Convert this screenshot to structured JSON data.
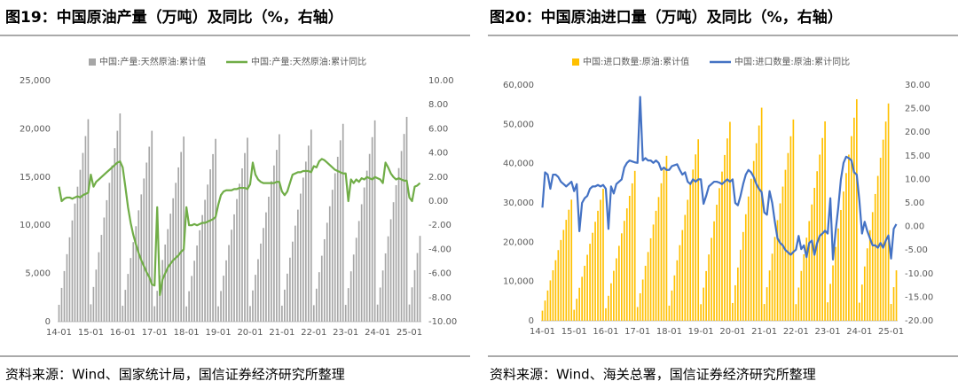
{
  "chart_data": [
    {
      "type": "combo",
      "title": "图19：中国原油产量（万吨）及同比（%，右轴）",
      "source": "资料来源：Wind、国家统计局，国信证券经济研究所整理",
      "categories": [
        "14-01",
        null,
        null,
        null,
        null,
        null,
        null,
        null,
        null,
        null,
        null,
        null,
        "15-01",
        null,
        null,
        null,
        null,
        null,
        null,
        null,
        null,
        null,
        null,
        null,
        "16-01",
        null,
        null,
        null,
        null,
        null,
        null,
        null,
        null,
        null,
        null,
        null,
        "17-01",
        null,
        null,
        null,
        null,
        null,
        null,
        null,
        null,
        null,
        null,
        null,
        "18-01",
        null,
        null,
        null,
        null,
        null,
        null,
        null,
        null,
        null,
        null,
        null,
        "19-01",
        null,
        null,
        null,
        null,
        null,
        null,
        null,
        null,
        null,
        null,
        null,
        "20-01",
        null,
        null,
        null,
        null,
        null,
        null,
        null,
        null,
        null,
        null,
        null,
        "21-01",
        null,
        null,
        null,
        null,
        null,
        null,
        null,
        null,
        null,
        null,
        null,
        "22-01",
        null,
        null,
        null,
        null,
        null,
        null,
        null,
        null,
        null,
        null,
        null,
        "23-01",
        null,
        null,
        null,
        null,
        null,
        null,
        null,
        null,
        null,
        null,
        null,
        "24-01",
        null,
        null,
        null,
        null,
        null,
        null,
        null,
        null,
        null,
        null,
        null,
        "25-01",
        null,
        null,
        null,
        null
      ],
      "ylim": [
        0,
        25000
      ],
      "yticks": [
        0,
        {
          "value": 5000,
          "label": "5,000"
        },
        {
          "value": 10000,
          "label": "10,000"
        },
        {
          "value": 15000,
          "label": "15,000"
        },
        {
          "value": 20000,
          "label": "20,000"
        },
        {
          "value": 25000,
          "label": "25,000"
        }
      ],
      "y2lim": [
        -10,
        10
      ],
      "y2ticks": [
        {
          "value": -10,
          "label": "-10.00"
        },
        {
          "value": -8,
          "label": "-8.00"
        },
        {
          "value": -6,
          "label": "-6.00"
        },
        {
          "value": -4,
          "label": "-4.00"
        },
        {
          "value": -2,
          "label": "-2.00"
        },
        {
          "value": 0,
          "label": "0.00"
        },
        {
          "value": 2,
          "label": "2.00"
        },
        {
          "value": 4,
          "label": "4.00"
        },
        {
          "value": 6,
          "label": "6.00"
        },
        {
          "value": 8,
          "label": "8.00"
        },
        {
          "value": 10,
          "label": "10.00"
        }
      ],
      "series": [
        {
          "name": "中国:产量:天然原油:累计值",
          "kind": "bar",
          "color": "#a6a6a6",
          "values": [
            1750,
            3500,
            5250,
            7000,
            8750,
            10500,
            12250,
            14000,
            15750,
            17500,
            19250,
            21000,
            1800,
            3600,
            5400,
            7200,
            9000,
            10800,
            12600,
            14400,
            16200,
            18000,
            19800,
            21600,
            1650,
            3300,
            4950,
            6600,
            8250,
            9900,
            11550,
            13200,
            14850,
            16500,
            18150,
            19800,
            1600,
            3200,
            4800,
            6400,
            8000,
            9600,
            11200,
            12800,
            14400,
            16000,
            17600,
            19200,
            1580,
            3160,
            4740,
            6320,
            7900,
            9480,
            11060,
            12640,
            14220,
            15800,
            17380,
            18960,
            1590,
            3180,
            4770,
            6360,
            7950,
            9540,
            11130,
            12720,
            14310,
            15900,
            17490,
            19080,
            1620,
            3240,
            4860,
            6480,
            8100,
            9720,
            11340,
            12960,
            14580,
            16200,
            17820,
            19440,
            1660,
            3320,
            4980,
            6640,
            8300,
            9960,
            11620,
            13280,
            14940,
            16600,
            18260,
            19920,
            1710,
            3420,
            5130,
            6840,
            8550,
            10260,
            11970,
            13680,
            15390,
            17100,
            18810,
            20520,
            1740,
            3480,
            5220,
            6960,
            8700,
            10440,
            12180,
            13920,
            15660,
            17400,
            19140,
            20880,
            1770,
            3540,
            5310,
            7080,
            8850,
            10620,
            12390,
            14160,
            15930,
            17700,
            19470,
            21240,
            1780,
            3560,
            5340,
            7120,
            8900
          ]
        },
        {
          "name": "中国:产量:天然原油:累计同比",
          "kind": "line",
          "axis": "y2",
          "color": "#70ad47",
          "values": [
            1.2,
            0.0,
            0.2,
            0.3,
            0.3,
            0.2,
            0.3,
            0.4,
            0.3,
            0.5,
            0.6,
            0.7,
            2.2,
            1.2,
            1.6,
            1.8,
            2.0,
            2.2,
            2.4,
            2.6,
            2.8,
            3.0,
            3.2,
            3.3,
            2.8,
            1.2,
            -0.5,
            -1.8,
            -2.8,
            -3.6,
            -4.3,
            -4.9,
            -5.4,
            -5.9,
            -6.3,
            -6.9,
            -7.0,
            -0.5,
            -7.8,
            -6.5,
            -6.0,
            -5.5,
            -5.2,
            -4.9,
            -4.7,
            -4.5,
            -4.2,
            -4.0,
            -0.5,
            -2.0,
            -2.0,
            -1.9,
            -2.0,
            -1.9,
            -1.8,
            -1.8,
            -1.7,
            -1.6,
            -1.5,
            -1.3,
            -0.3,
            0.5,
            0.8,
            0.9,
            0.9,
            0.9,
            1.0,
            1.0,
            1.1,
            1.1,
            1.1,
            1.0,
            1.4,
            3.2,
            2.2,
            1.8,
            1.6,
            1.5,
            1.5,
            1.5,
            1.5,
            1.5,
            1.6,
            1.6,
            0.8,
            0.5,
            0.8,
            1.5,
            2.2,
            2.3,
            2.4,
            2.4,
            2.5,
            2.5,
            2.5,
            2.4,
            2.9,
            2.8,
            3.3,
            3.5,
            3.4,
            3.2,
            3.0,
            2.8,
            2.6,
            2.5,
            2.4,
            2.3,
            2.3,
            0.0,
            1.8,
            1.5,
            1.8,
            1.6,
            1.9,
            1.8,
            2.0,
            1.9,
            1.8,
            2.0,
            1.9,
            1.8,
            1.5,
            3.2,
            2.8,
            2.3,
            2.0,
            1.8,
            1.9,
            1.8,
            1.7,
            1.7,
            0.3,
            0.0,
            1.2,
            1.3,
            1.5
          ]
        }
      ]
    },
    {
      "type": "combo",
      "title": "图20：中国原油进口量（万吨）及同比（%，右轴）",
      "source": "资料来源：Wind、海关总署，国信证券经济研究所整理",
      "categories": [
        "14-01",
        null,
        null,
        null,
        null,
        null,
        null,
        null,
        null,
        null,
        null,
        null,
        "15-01",
        null,
        null,
        null,
        null,
        null,
        null,
        null,
        null,
        null,
        null,
        null,
        "16-01",
        null,
        null,
        null,
        null,
        null,
        null,
        null,
        null,
        null,
        null,
        null,
        "17-01",
        null,
        null,
        null,
        null,
        null,
        null,
        null,
        null,
        null,
        null,
        null,
        "18-01",
        null,
        null,
        null,
        null,
        null,
        null,
        null,
        null,
        null,
        null,
        null,
        "19-01",
        null,
        null,
        null,
        null,
        null,
        null,
        null,
        null,
        null,
        null,
        null,
        "20-01",
        null,
        null,
        null,
        null,
        null,
        null,
        null,
        null,
        null,
        null,
        null,
        "21-01",
        null,
        null,
        null,
        null,
        null,
        null,
        null,
        null,
        null,
        null,
        null,
        "22-01",
        null,
        null,
        null,
        null,
        null,
        null,
        null,
        null,
        null,
        null,
        null,
        "23-01",
        null,
        null,
        null,
        null,
        null,
        null,
        null,
        null,
        null,
        null,
        null,
        "24-01",
        null,
        null,
        null,
        null,
        null,
        null,
        null,
        null,
        null,
        null,
        null,
        "25-01",
        null,
        null
      ],
      "ylim": [
        0,
        60000
      ],
      "yticks": [
        0,
        {
          "value": 10000,
          "label": "10,000"
        },
        {
          "value": 20000,
          "label": "20,000"
        },
        {
          "value": 30000,
          "label": "30,000"
        },
        {
          "value": 40000,
          "label": "40,000"
        },
        {
          "value": 50000,
          "label": "50,000"
        },
        {
          "value": 60000,
          "label": "60,000"
        }
      ],
      "y2lim": [
        -20,
        30
      ],
      "y2ticks": [
        {
          "value": -20,
          "label": "-20.00"
        },
        {
          "value": -15,
          "label": "-15.00"
        },
        {
          "value": -10,
          "label": "-10.00"
        },
        {
          "value": -5,
          "label": "-5.00"
        },
        {
          "value": 0,
          "label": "0.00"
        },
        {
          "value": 5,
          "label": "5.00"
        },
        {
          "value": 10,
          "label": "10.00"
        },
        {
          "value": 15,
          "label": "15.00"
        },
        {
          "value": 20,
          "label": "20.00"
        },
        {
          "value": 25,
          "label": "25.00"
        },
        {
          "value": 30,
          "label": "30.00"
        }
      ],
      "series": [
        {
          "name": "中国:进口数量:原油:累计值",
          "kind": "bar",
          "color": "#ffc000",
          "values": [
            2570,
            5140,
            7710,
            10280,
            12850,
            15420,
            17990,
            20560,
            23130,
            25700,
            28270,
            30840,
            2800,
            5600,
            8400,
            11200,
            14000,
            16800,
            19600,
            22400,
            25200,
            28000,
            30800,
            33600,
            3180,
            6360,
            9540,
            12720,
            15900,
            19080,
            22260,
            25440,
            28620,
            31800,
            34980,
            38160,
            3500,
            7000,
            10500,
            14000,
            17500,
            21000,
            24500,
            28000,
            31500,
            35000,
            38500,
            42000,
            3850,
            7700,
            11550,
            15400,
            19250,
            23100,
            26950,
            30800,
            34650,
            38500,
            42350,
            46200,
            4220,
            8440,
            12660,
            16880,
            21100,
            25320,
            29540,
            33760,
            37980,
            42200,
            46420,
            50640,
            4520,
            9040,
            13560,
            18080,
            22600,
            27120,
            31640,
            36160,
            40680,
            45200,
            49720,
            54240,
            4270,
            8540,
            12810,
            17080,
            21350,
            25620,
            29890,
            34160,
            38430,
            42700,
            46970,
            51240,
            4230,
            8460,
            12690,
            16920,
            21150,
            25380,
            29610,
            33840,
            38070,
            42300,
            46530,
            50760,
            4700,
            9400,
            14100,
            18800,
            23500,
            28200,
            32900,
            37600,
            42300,
            47000,
            51700,
            56400,
            4610,
            9220,
            13830,
            18440,
            23050,
            27660,
            32270,
            36880,
            41490,
            46100,
            50710,
            55320,
            4280,
            8560,
            12840
          ]
        },
        {
          "name": "中国:进口数量:原油:累计同比",
          "kind": "line",
          "axis": "y2",
          "color": "#4472c4",
          "values": [
            4.0,
            11.5,
            11.0,
            8.0,
            11.0,
            11.0,
            10.5,
            9.5,
            9.0,
            8.5,
            9.0,
            9.5,
            7.5,
            9.0,
            -1.0,
            5.0,
            6.0,
            6.5,
            8.0,
            8.5,
            8.5,
            8.8,
            8.5,
            8.8,
            8.0,
            -0.5,
            8.5,
            7.0,
            9.0,
            9.5,
            10.0,
            12.5,
            13.5,
            14.0,
            13.8,
            13.6,
            13.5,
            27.5,
            14.0,
            14.5,
            14.0,
            14.0,
            13.5,
            14.0,
            13.5,
            12.0,
            12.5,
            12.0,
            12.0,
            12.8,
            13.0,
            13.2,
            12.0,
            11.0,
            11.5,
            9.5,
            9.0,
            10.0,
            9.5,
            10.0,
            10.0,
            4.8,
            6.5,
            8.5,
            9.0,
            9.5,
            9.5,
            9.3,
            9.0,
            9.5,
            10.0,
            9.5,
            10.0,
            5.0,
            4.5,
            6.5,
            9.0,
            11.0,
            12.0,
            11.5,
            10.5,
            9.0,
            8.0,
            7.3,
            3.0,
            2.5,
            7.5,
            5.0,
            1.0,
            -2.5,
            -3.5,
            -4.0,
            -5.0,
            -5.5,
            -6.0,
            -5.4,
            -4.9,
            -2.0,
            -4.8,
            -4.0,
            -6.5,
            -3.5,
            -3.0,
            -6.0,
            -3.5,
            -2.0,
            -1.5,
            -0.9,
            -1.5,
            6.0,
            -7.0,
            -1.0,
            4.0,
            10.0,
            13.5,
            14.8,
            14.5,
            14.0,
            11.5,
            11.0,
            5.5,
            -1.5,
            1.0,
            -1.0,
            -2.5,
            -4.0,
            -4.0,
            -4.5,
            -3.5,
            -4.5,
            -3.0,
            -1.9,
            -6.8,
            -0.5,
            0.5
          ]
        }
      ]
    }
  ]
}
